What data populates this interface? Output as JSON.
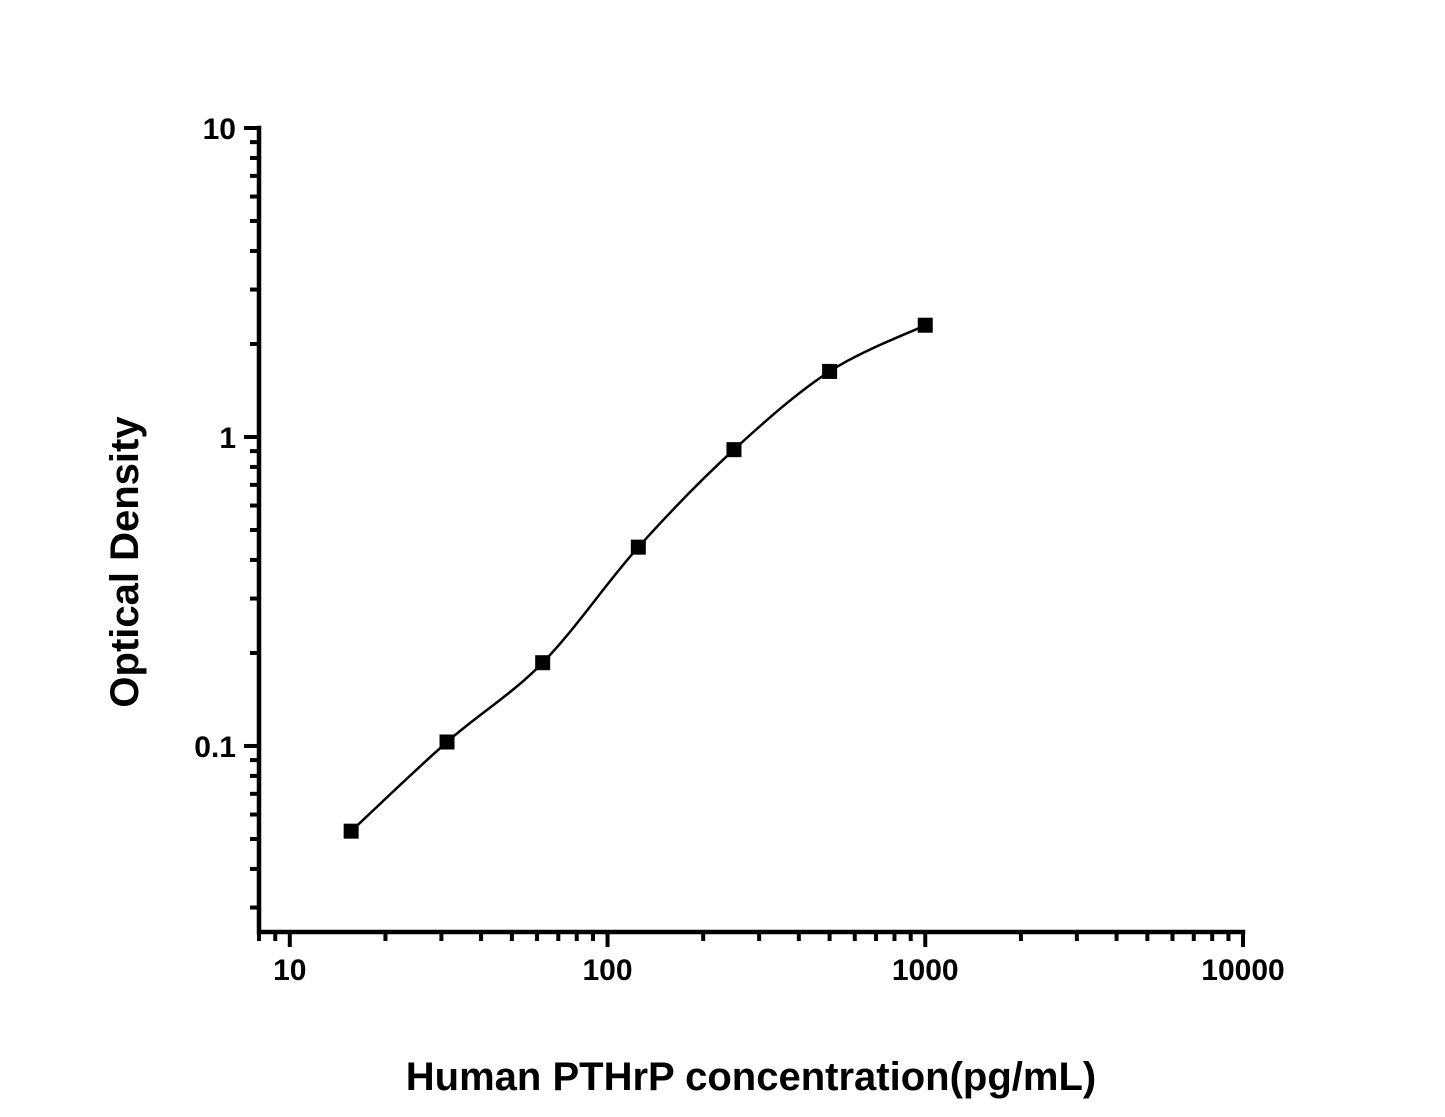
{
  "figure": {
    "background_color": "#ffffff",
    "axis_color": "#000000"
  },
  "chart_data": {
    "type": "line",
    "description": "ELISA standard curve, log-log scatter with fitted line, black square markers",
    "x": [
      15.6,
      31.25,
      62.5,
      125,
      250,
      500,
      1000
    ],
    "y": [
      0.053,
      0.103,
      0.186,
      0.44,
      0.91,
      1.63,
      2.3
    ],
    "title": "",
    "xlabel": "Human PTHrP concentration(pg/mL)",
    "ylabel": "Optical Density",
    "xscale": "log",
    "yscale": "log",
    "xlim": [
      8,
      10000
    ],
    "ylim": [
      0.025,
      10
    ],
    "x_major_ticks": [
      10,
      100,
      1000,
      10000
    ],
    "x_tick_labels": [
      "10",
      "100",
      "1000",
      "10000"
    ],
    "y_major_ticks": [
      10,
      1,
      0.1
    ],
    "y_tick_labels": [
      "10",
      "1",
      "0.1"
    ],
    "grid": false,
    "legend": false,
    "marker": "square",
    "marker_size": 15,
    "marker_color": "#000000",
    "line_color": "#000000"
  }
}
